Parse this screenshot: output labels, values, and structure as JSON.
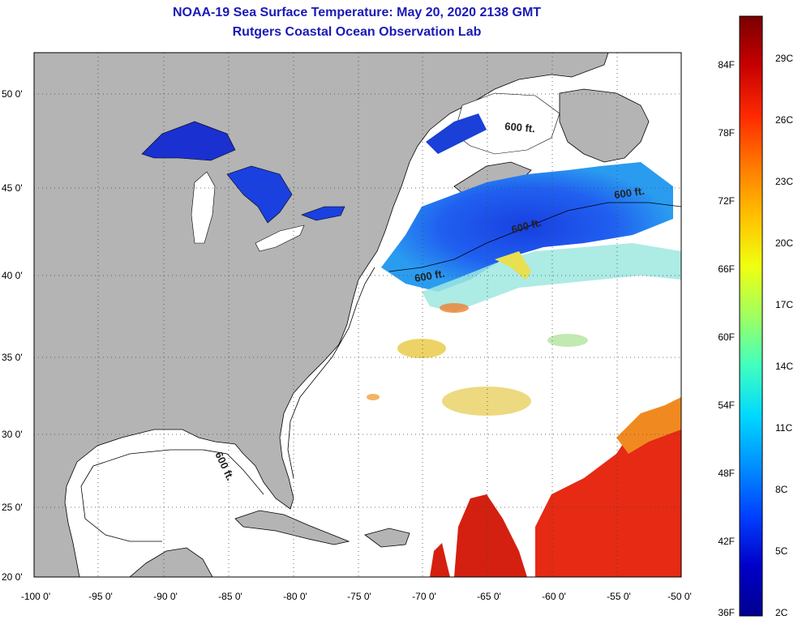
{
  "header": {
    "title": "NOAA-19 Sea Surface Temperature:  May 20, 2020 2138 GMT",
    "subtitle": "Rutgers Coastal Ocean Observation Lab"
  },
  "map": {
    "lat_labels": [
      "50 0'",
      "45 0'",
      "40 0'",
      "35 0'",
      "30 0'",
      "25 0'",
      "20 0'"
    ],
    "lon_labels": [
      "-100 0'",
      "-95 0'",
      "-90 0'",
      "-85 0'",
      "-80 0'",
      "-75 0'",
      "-70 0'",
      "-65 0'",
      "-60 0'",
      "-55 0'",
      "-50 0'"
    ],
    "contour_label": "600 ft.",
    "colors": {
      "land": "#b4b4b4",
      "ocean_nodata": "#ffffff",
      "warm": "#e62a14",
      "cold": "#1a3cd8"
    }
  },
  "colorbar": {
    "fahrenheit_labels": [
      "84F",
      "78F",
      "72F",
      "66F",
      "60F",
      "54F",
      "48F",
      "42F",
      "36F"
    ],
    "celsius_labels": [
      "29C",
      "26C",
      "23C",
      "20C",
      "17C",
      "14C",
      "11C",
      "8C",
      "5C",
      "2C"
    ],
    "gradient": [
      "#7a0000",
      "#c80000",
      "#ff2a00",
      "#ff7a00",
      "#ffc000",
      "#f0ff10",
      "#a0ff60",
      "#40ffc0",
      "#00d8ff",
      "#0090ff",
      "#0040ff",
      "#0000c8",
      "#000090"
    ]
  }
}
